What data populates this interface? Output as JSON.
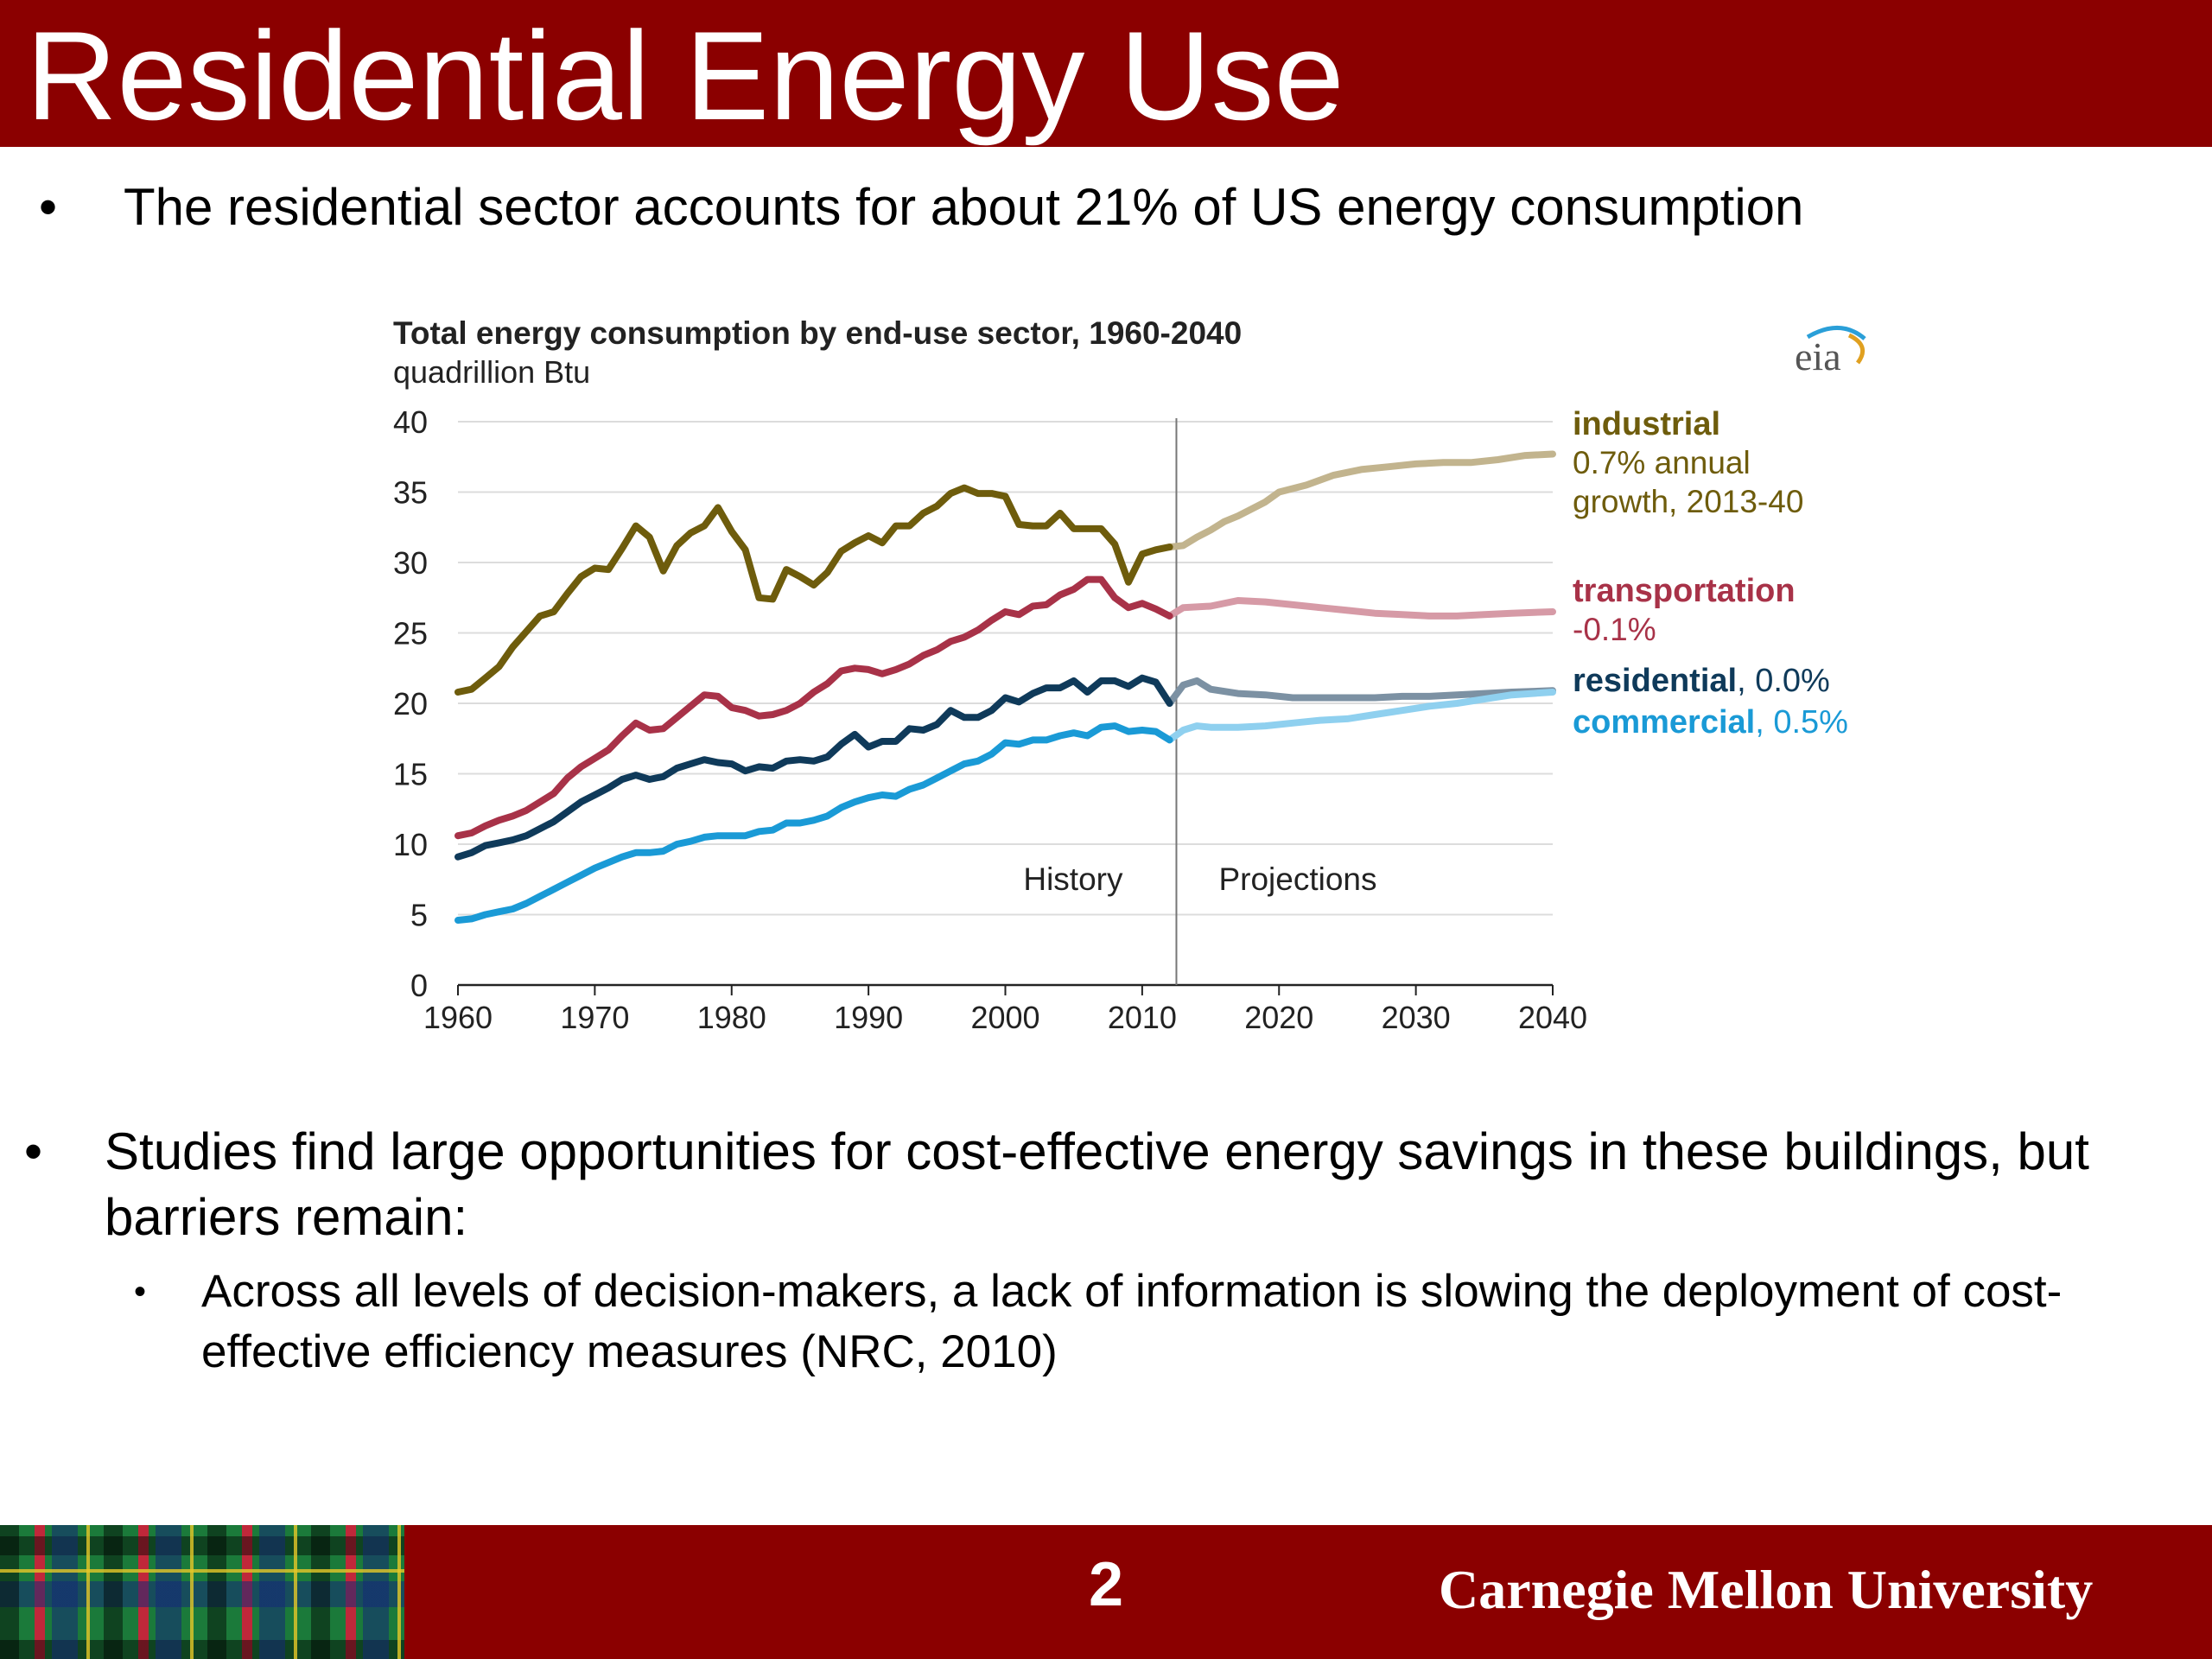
{
  "slide": {
    "title": "Residential Energy Use",
    "bullet_glyph": "•",
    "bullet1": "The residential sector accounts for about 21% of US energy consumption",
    "bullet2": "Studies find large opportunities for cost-effective energy savings in these buildings, but barriers remain:",
    "bullet3": "Across all levels of decision-makers, a lack of information is slowing the deployment of cost-effective efficiency  measures (NRC, 2010)",
    "page_number": "2",
    "university": "Carnegie Mellon University",
    "colors": {
      "title_bar": "#8b0000",
      "footer_bar": "#8b0000"
    },
    "footer_pattern": "tartan"
  },
  "chart_data": {
    "type": "line",
    "title": "Total energy consumption  by  end-use sector,  1960-2040",
    "subtitle": "quadrillion  Btu",
    "logo": "eia",
    "xlim": [
      1960,
      2040
    ],
    "ylim": [
      0,
      40
    ],
    "x_ticks": [
      1960,
      1970,
      1980,
      1990,
      2000,
      2010,
      2020,
      2030,
      2040
    ],
    "y_ticks": [
      0,
      5,
      10,
      15,
      20,
      25,
      30,
      35,
      40
    ],
    "grid": "horizontal",
    "history_projection_split": 2012.5,
    "region_labels": {
      "history": "History",
      "projections": "Projections"
    },
    "series": [
      {
        "name": "industrial",
        "label_name": "industrial",
        "label_rest": "",
        "label_note": [
          "0.7% annual",
          "growth,  2013-40"
        ],
        "color": "#6e5c0c",
        "projection_color": "#c2b48e",
        "history": [
          [
            1960,
            20.8
          ],
          [
            1961,
            21
          ],
          [
            1962,
            21.8
          ],
          [
            1963,
            22.6
          ],
          [
            1964,
            24
          ],
          [
            1965,
            25.1
          ],
          [
            1966,
            26.2
          ],
          [
            1967,
            26.5
          ],
          [
            1968,
            27.8
          ],
          [
            1969,
            29
          ],
          [
            1970,
            29.6
          ],
          [
            1971,
            29.5
          ],
          [
            1972,
            31
          ],
          [
            1973,
            32.6
          ],
          [
            1974,
            31.8
          ],
          [
            1975,
            29.4
          ],
          [
            1976,
            31.2
          ],
          [
            1977,
            32.1
          ],
          [
            1978,
            32.6
          ],
          [
            1979,
            33.9
          ],
          [
            1980,
            32.2
          ],
          [
            1981,
            30.9
          ],
          [
            1982,
            27.5
          ],
          [
            1983,
            27.4
          ],
          [
            1984,
            29.5
          ],
          [
            1985,
            29
          ],
          [
            1986,
            28.4
          ],
          [
            1987,
            29.3
          ],
          [
            1988,
            30.8
          ],
          [
            1989,
            31.4
          ],
          [
            1990,
            31.9
          ],
          [
            1991,
            31.4
          ],
          [
            1992,
            32.6
          ],
          [
            1993,
            32.6
          ],
          [
            1994,
            33.5
          ],
          [
            1995,
            34
          ],
          [
            1996,
            34.9
          ],
          [
            1997,
            35.3
          ],
          [
            1998,
            34.9
          ],
          [
            1999,
            34.9
          ],
          [
            2000,
            34.7
          ],
          [
            2001,
            32.7
          ],
          [
            2002,
            32.6
          ],
          [
            2003,
            32.6
          ],
          [
            2004,
            33.5
          ],
          [
            2005,
            32.4
          ],
          [
            2006,
            32.4
          ],
          [
            2007,
            32.4
          ],
          [
            2008,
            31.3
          ],
          [
            2009,
            28.6
          ],
          [
            2010,
            30.6
          ],
          [
            2011,
            30.9
          ],
          [
            2012,
            31.1
          ]
        ],
        "projection": [
          [
            2012,
            31.1
          ],
          [
            2013,
            31.2
          ],
          [
            2014,
            31.8
          ],
          [
            2015,
            32.3
          ],
          [
            2016,
            32.9
          ],
          [
            2017,
            33.3
          ],
          [
            2018,
            33.8
          ],
          [
            2019,
            34.3
          ],
          [
            2020,
            35
          ],
          [
            2022,
            35.5
          ],
          [
            2024,
            36.2
          ],
          [
            2026,
            36.6
          ],
          [
            2028,
            36.8
          ],
          [
            2030,
            37
          ],
          [
            2032,
            37.1
          ],
          [
            2034,
            37.1
          ],
          [
            2036,
            37.3
          ],
          [
            2038,
            37.6
          ],
          [
            2040,
            37.7
          ]
        ]
      },
      {
        "name": "transportation",
        "label_name": "transportation",
        "label_rest": "",
        "label_note": [
          "-0.1%"
        ],
        "color": "#a83248",
        "projection_color": "#d69aa6",
        "history": [
          [
            1960,
            10.6
          ],
          [
            1961,
            10.8
          ],
          [
            1962,
            11.3
          ],
          [
            1963,
            11.7
          ],
          [
            1964,
            12
          ],
          [
            1965,
            12.4
          ],
          [
            1966,
            13
          ],
          [
            1967,
            13.6
          ],
          [
            1968,
            14.7
          ],
          [
            1969,
            15.5
          ],
          [
            1970,
            16.1
          ],
          [
            1971,
            16.7
          ],
          [
            1972,
            17.7
          ],
          [
            1973,
            18.6
          ],
          [
            1974,
            18.1
          ],
          [
            1975,
            18.2
          ],
          [
            1976,
            19
          ],
          [
            1977,
            19.8
          ],
          [
            1978,
            20.6
          ],
          [
            1979,
            20.5
          ],
          [
            1980,
            19.7
          ],
          [
            1981,
            19.5
          ],
          [
            1982,
            19.1
          ],
          [
            1983,
            19.2
          ],
          [
            1984,
            19.5
          ],
          [
            1985,
            20
          ],
          [
            1986,
            20.8
          ],
          [
            1987,
            21.4
          ],
          [
            1988,
            22.3
          ],
          [
            1989,
            22.5
          ],
          [
            1990,
            22.4
          ],
          [
            1991,
            22.1
          ],
          [
            1992,
            22.4
          ],
          [
            1993,
            22.8
          ],
          [
            1994,
            23.4
          ],
          [
            1995,
            23.8
          ],
          [
            1996,
            24.4
          ],
          [
            1997,
            24.7
          ],
          [
            1998,
            25.2
          ],
          [
            1999,
            25.9
          ],
          [
            2000,
            26.5
          ],
          [
            2001,
            26.3
          ],
          [
            2002,
            26.9
          ],
          [
            2003,
            27
          ],
          [
            2004,
            27.7
          ],
          [
            2005,
            28.1
          ],
          [
            2006,
            28.8
          ],
          [
            2007,
            28.8
          ],
          [
            2008,
            27.5
          ],
          [
            2009,
            26.8
          ],
          [
            2010,
            27.1
          ],
          [
            2011,
            26.7
          ],
          [
            2012,
            26.2
          ]
        ],
        "projection": [
          [
            2012,
            26.2
          ],
          [
            2013,
            26.8
          ],
          [
            2015,
            26.9
          ],
          [
            2017,
            27.3
          ],
          [
            2019,
            27.2
          ],
          [
            2021,
            27
          ],
          [
            2023,
            26.8
          ],
          [
            2025,
            26.6
          ],
          [
            2027,
            26.4
          ],
          [
            2029,
            26.3
          ],
          [
            2031,
            26.2
          ],
          [
            2033,
            26.2
          ],
          [
            2035,
            26.3
          ],
          [
            2037,
            26.4
          ],
          [
            2040,
            26.5
          ]
        ]
      },
      {
        "name": "residential",
        "label_name": "residential",
        "label_rest": ", 0.0%",
        "label_note": [],
        "color": "#0f3a5a",
        "projection_color": "#7c91a3",
        "history": [
          [
            1960,
            9.1
          ],
          [
            1961,
            9.4
          ],
          [
            1962,
            9.9
          ],
          [
            1963,
            10.1
          ],
          [
            1964,
            10.3
          ],
          [
            1965,
            10.6
          ],
          [
            1966,
            11.1
          ],
          [
            1967,
            11.6
          ],
          [
            1968,
            12.3
          ],
          [
            1969,
            13
          ],
          [
            1970,
            13.5
          ],
          [
            1971,
            14
          ],
          [
            1972,
            14.6
          ],
          [
            1973,
            14.9
          ],
          [
            1974,
            14.6
          ],
          [
            1975,
            14.8
          ],
          [
            1976,
            15.4
          ],
          [
            1977,
            15.7
          ],
          [
            1978,
            16
          ],
          [
            1979,
            15.8
          ],
          [
            1980,
            15.7
          ],
          [
            1981,
            15.2
          ],
          [
            1982,
            15.5
          ],
          [
            1983,
            15.4
          ],
          [
            1984,
            15.9
          ],
          [
            1985,
            16
          ],
          [
            1986,
            15.9
          ],
          [
            1987,
            16.2
          ],
          [
            1988,
            17.1
          ],
          [
            1989,
            17.8
          ],
          [
            1990,
            16.9
          ],
          [
            1991,
            17.3
          ],
          [
            1992,
            17.3
          ],
          [
            1993,
            18.2
          ],
          [
            1994,
            18.1
          ],
          [
            1995,
            18.5
          ],
          [
            1996,
            19.5
          ],
          [
            1997,
            19
          ],
          [
            1998,
            19
          ],
          [
            1999,
            19.5
          ],
          [
            2000,
            20.4
          ],
          [
            2001,
            20.1
          ],
          [
            2002,
            20.7
          ],
          [
            2003,
            21.1
          ],
          [
            2004,
            21.1
          ],
          [
            2005,
            21.6
          ],
          [
            2006,
            20.8
          ],
          [
            2007,
            21.6
          ],
          [
            2008,
            21.6
          ],
          [
            2009,
            21.2
          ],
          [
            2010,
            21.8
          ],
          [
            2011,
            21.5
          ],
          [
            2012,
            20
          ]
        ],
        "projection": [
          [
            2012,
            20
          ],
          [
            2013,
            21.3
          ],
          [
            2014,
            21.6
          ],
          [
            2015,
            21
          ],
          [
            2017,
            20.7
          ],
          [
            2019,
            20.6
          ],
          [
            2021,
            20.4
          ],
          [
            2023,
            20.4
          ],
          [
            2025,
            20.4
          ],
          [
            2027,
            20.4
          ],
          [
            2029,
            20.5
          ],
          [
            2031,
            20.5
          ],
          [
            2033,
            20.6
          ],
          [
            2035,
            20.7
          ],
          [
            2037,
            20.8
          ],
          [
            2040,
            20.9
          ]
        ]
      },
      {
        "name": "commercial",
        "label_name": "commercial",
        "label_rest": ", 0.5%",
        "label_note": [],
        "color": "#1a9ad6",
        "projection_color": "#8fd0ef",
        "history": [
          [
            1960,
            4.6
          ],
          [
            1961,
            4.7
          ],
          [
            1962,
            5
          ],
          [
            1963,
            5.2
          ],
          [
            1964,
            5.4
          ],
          [
            1965,
            5.8
          ],
          [
            1966,
            6.3
          ],
          [
            1967,
            6.8
          ],
          [
            1968,
            7.3
          ],
          [
            1969,
            7.8
          ],
          [
            1970,
            8.3
          ],
          [
            1971,
            8.7
          ],
          [
            1972,
            9.1
          ],
          [
            1973,
            9.4
          ],
          [
            1974,
            9.4
          ],
          [
            1975,
            9.5
          ],
          [
            1976,
            10
          ],
          [
            1977,
            10.2
          ],
          [
            1978,
            10.5
          ],
          [
            1979,
            10.6
          ],
          [
            1980,
            10.6
          ],
          [
            1981,
            10.6
          ],
          [
            1982,
            10.9
          ],
          [
            1983,
            11
          ],
          [
            1984,
            11.5
          ],
          [
            1985,
            11.5
          ],
          [
            1986,
            11.7
          ],
          [
            1987,
            12
          ],
          [
            1988,
            12.6
          ],
          [
            1989,
            13
          ],
          [
            1990,
            13.3
          ],
          [
            1991,
            13.5
          ],
          [
            1992,
            13.4
          ],
          [
            1993,
            13.9
          ],
          [
            1994,
            14.2
          ],
          [
            1995,
            14.7
          ],
          [
            1996,
            15.2
          ],
          [
            1997,
            15.7
          ],
          [
            1998,
            15.9
          ],
          [
            1999,
            16.4
          ],
          [
            2000,
            17.2
          ],
          [
            2001,
            17.1
          ],
          [
            2002,
            17.4
          ],
          [
            2003,
            17.4
          ],
          [
            2004,
            17.7
          ],
          [
            2005,
            17.9
          ],
          [
            2006,
            17.7
          ],
          [
            2007,
            18.3
          ],
          [
            2008,
            18.4
          ],
          [
            2009,
            18
          ],
          [
            2010,
            18.1
          ],
          [
            2011,
            18
          ],
          [
            2012,
            17.4
          ]
        ],
        "projection": [
          [
            2012,
            17.4
          ],
          [
            2013,
            18.1
          ],
          [
            2014,
            18.4
          ],
          [
            2015,
            18.3
          ],
          [
            2017,
            18.3
          ],
          [
            2019,
            18.4
          ],
          [
            2021,
            18.6
          ],
          [
            2023,
            18.8
          ],
          [
            2025,
            18.9
          ],
          [
            2027,
            19.2
          ],
          [
            2029,
            19.5
          ],
          [
            2031,
            19.8
          ],
          [
            2033,
            20
          ],
          [
            2035,
            20.3
          ],
          [
            2037,
            20.6
          ],
          [
            2040,
            20.8
          ]
        ]
      }
    ]
  }
}
